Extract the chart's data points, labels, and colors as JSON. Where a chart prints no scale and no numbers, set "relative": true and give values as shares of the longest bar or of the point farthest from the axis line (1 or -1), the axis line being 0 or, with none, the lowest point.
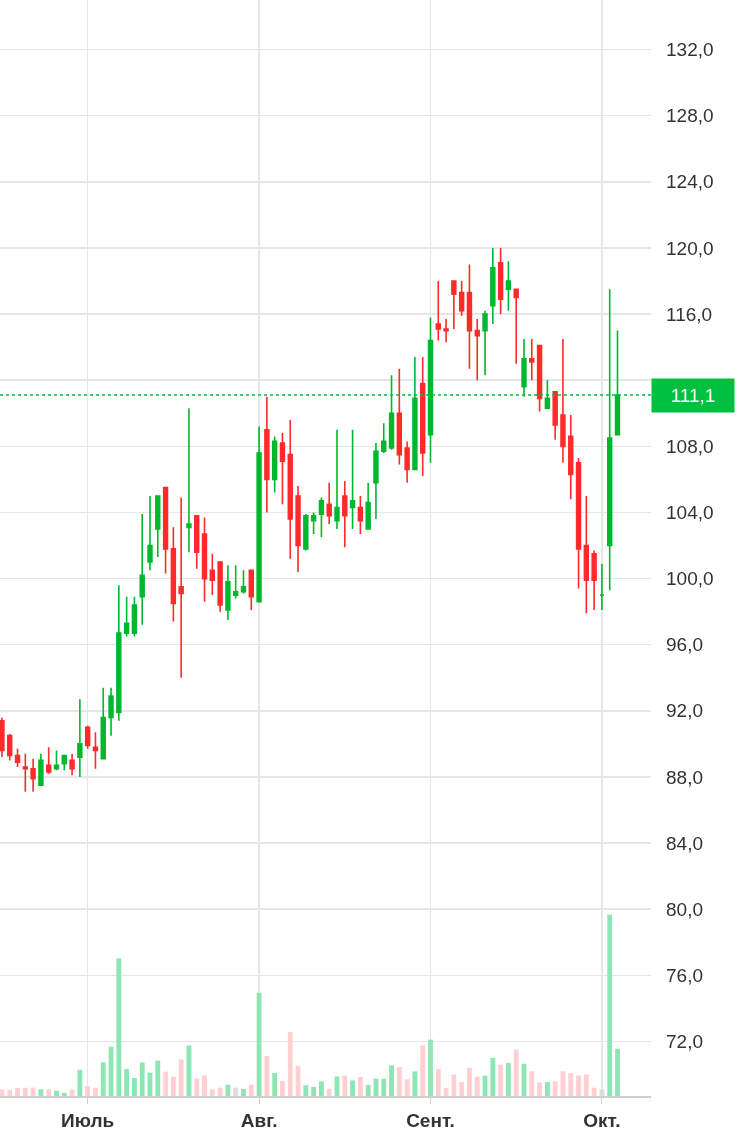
{
  "chart_data": [
    {
      "type": "candlestick",
      "categories": [
        null,
        null,
        null,
        null,
        null,
        null,
        null,
        null,
        null,
        null,
        null,
        "Июль",
        null,
        null,
        null,
        null,
        null,
        null,
        null,
        null,
        null,
        null,
        null,
        null,
        null,
        null,
        null,
        null,
        null,
        null,
        null,
        null,
        null,
        "Авг.",
        null,
        null,
        null,
        null,
        null,
        null,
        null,
        null,
        null,
        null,
        null,
        null,
        null,
        null,
        null,
        null,
        null,
        null,
        null,
        null,
        null,
        "Сент.",
        null,
        null,
        null,
        null,
        null,
        null,
        null,
        null,
        null,
        null,
        null,
        null,
        null,
        null,
        null,
        null,
        null,
        null,
        null,
        null,
        null,
        "Окт.",
        null,
        null
      ],
      "ylim": [
        68.7,
        135
      ],
      "yticks": [
        {
          "value": 72,
          "label": "72,0"
        },
        {
          "value": 76,
          "label": "76,0"
        },
        {
          "value": 80,
          "label": "80,0"
        },
        {
          "value": 84,
          "label": "84,0"
        },
        {
          "value": 88,
          "label": "88,0"
        },
        {
          "value": 92,
          "label": "92,0"
        },
        {
          "value": 96,
          "label": "96,0"
        },
        {
          "value": 100,
          "label": "100,0"
        },
        {
          "value": 104,
          "label": "104,0"
        },
        {
          "value": 108,
          "label": "108,0"
        },
        {
          "value": 112,
          "label": null
        },
        {
          "value": 116,
          "label": "116,0"
        },
        {
          "value": 120,
          "label": "120,0"
        },
        {
          "value": 124,
          "label": "124,0"
        },
        {
          "value": 128,
          "label": "128,0"
        },
        {
          "value": 132,
          "label": "132,0"
        }
      ],
      "grid": true,
      "ref_lines": [
        {
          "axis": "y",
          "value": 111.1,
          "label": "111,1",
          "color": "#00c040",
          "line_style": "dotted"
        }
      ],
      "colors": [
        "#ff2a2a",
        "#ff2a2a",
        "#ff2a2a",
        "#ff2a2a",
        "#ff2a2a",
        "#00b82e",
        "#ff2a2a",
        "#00b82e",
        "#00b82e",
        "#ff2a2a",
        "#00b82e",
        "#ff2a2a",
        "#ff2a2a",
        "#00b82e",
        "#00b82e",
        "#00b82e",
        "#00b82e",
        "#00b82e",
        "#00b82e",
        "#00b82e",
        "#00b82e",
        "#ff2a2a",
        "#ff2a2a",
        "#ff2a2a",
        "#00b82e",
        "#ff2a2a",
        "#ff2a2a",
        "#ff2a2a",
        "#ff2a2a",
        "#00b82e",
        "#00b82e",
        "#00b82e",
        "#ff2a2a",
        "#00b82e",
        "#ff2a2a",
        "#00b82e",
        "#ff2a2a",
        "#ff2a2a",
        "#ff2a2a",
        "#00b82e",
        "#00b82e",
        "#00b82e",
        "#ff2a2a",
        "#00b82e",
        "#ff2a2a",
        "#00b82e",
        "#ff2a2a",
        "#00b82e",
        "#00b82e",
        "#00b82e",
        "#00b82e",
        "#ff2a2a",
        "#ff2a2a",
        "#00b82e",
        "#ff2a2a",
        "#00b82e",
        "#ff2a2a",
        "#ff2a2a",
        "#ff2a2a",
        "#ff2a2a",
        "#ff2a2a",
        "#ff2a2a",
        "#00b82e",
        "#00b82e",
        "#ff2a2a",
        "#00b82e",
        "#ff2a2a",
        "#00b82e",
        "#ff2a2a",
        "#ff2a2a",
        "#00b82e",
        "#ff2a2a",
        "#ff2a2a",
        "#ff2a2a",
        "#ff2a2a",
        "#ff2a2a",
        "#ff2a2a",
        "#00b82e",
        "#00b82e",
        "#00b82e"
      ],
      "ohlc": [
        [
          91.4,
          91.6,
          89.2,
          89.6
        ],
        [
          90.5,
          90.6,
          89.0,
          89.3
        ],
        [
          89.3,
          89.7,
          88.6,
          88.9
        ],
        [
          88.6,
          89.4,
          87.1,
          88.5
        ],
        [
          88.5,
          89.1,
          87.1,
          87.9
        ],
        [
          87.5,
          89.4,
          87.5,
          89.0
        ],
        [
          88.7,
          89.8,
          88.2,
          88.3
        ],
        [
          88.5,
          89.6,
          88.4,
          88.7
        ],
        [
          88.8,
          89.3,
          88.4,
          89.3
        ],
        [
          89.0,
          89.4,
          88.1,
          88.5
        ],
        [
          89.2,
          92.7,
          88.0,
          90.0
        ],
        [
          91.0,
          91.1,
          89.7,
          89.9
        ],
        [
          89.8,
          90.7,
          88.5,
          89.6
        ],
        [
          89.1,
          93.4,
          89.1,
          91.6
        ],
        [
          91.6,
          93.4,
          90.5,
          92.9
        ],
        [
          91.9,
          99.6,
          91.4,
          96.7
        ],
        [
          96.7,
          98.9,
          96.5,
          97.3
        ],
        [
          96.7,
          98.9,
          96.5,
          98.4
        ],
        [
          98.9,
          103.9,
          97.2,
          100.2
        ],
        [
          101.0,
          105.0,
          100.5,
          102.0
        ],
        [
          103.0,
          105.0,
          101.3,
          105.0
        ],
        [
          105.5,
          105.5,
          100.3,
          101.8
        ],
        [
          101.8,
          103.1,
          97.4,
          98.5
        ],
        [
          99.5,
          104.9,
          94.0,
          99.1
        ],
        [
          103.1,
          110.3,
          101.6,
          103.3
        ],
        [
          103.8,
          103.8,
          100.6,
          101.6
        ],
        [
          102.7,
          103.7,
          98.6,
          100.0
        ],
        [
          100.5,
          101.5,
          99.0,
          99.9
        ],
        [
          101.0,
          101.0,
          98.0,
          98.4
        ],
        [
          98.1,
          100.8,
          97.5,
          99.8
        ],
        [
          99.0,
          100.8,
          98.8,
          99.2
        ],
        [
          99.2,
          100.5,
          99.1,
          99.5
        ],
        [
          100.5,
          100.5,
          98.1,
          98.9
        ],
        [
          98.6,
          109.2,
          98.6,
          107.6
        ],
        [
          109.0,
          111.0,
          104.0,
          106.0
        ],
        [
          106.0,
          108.6,
          105.2,
          108.3
        ],
        [
          108.2,
          108.8,
          104.5,
          107.1
        ],
        [
          107.5,
          109.6,
          101.2,
          103.6
        ],
        [
          105.0,
          105.6,
          100.4,
          102.0
        ],
        [
          101.8,
          103.9,
          101.7,
          103.8
        ],
        [
          103.5,
          104.0,
          102.7,
          103.8
        ],
        [
          103.9,
          104.9,
          102.5,
          104.7
        ],
        [
          104.5,
          105.8,
          103.3,
          103.8
        ],
        [
          103.5,
          109.0,
          103.0,
          104.3
        ],
        [
          105.0,
          105.9,
          101.9,
          103.8
        ],
        [
          104.3,
          109.0,
          103.0,
          104.7
        ],
        [
          104.3,
          105.0,
          102.7,
          103.5
        ],
        [
          103.0,
          105.8,
          103.0,
          104.6
        ],
        [
          105.8,
          108.2,
          103.6,
          107.7
        ],
        [
          107.7,
          109.4,
          107.6,
          108.3
        ],
        [
          107.9,
          112.3,
          107.8,
          110.0
        ],
        [
          110.0,
          112.7,
          106.9,
          107.5
        ],
        [
          107.9,
          108.3,
          105.8,
          106.6
        ],
        [
          106.6,
          113.4,
          106.6,
          110.9
        ],
        [
          111.8,
          113.4,
          106.2,
          107.6
        ],
        [
          108.7,
          115.8,
          107.0,
          114.4
        ],
        [
          115.4,
          118.0,
          114.4,
          115.1
        ],
        [
          115.1,
          115.7,
          114.3,
          115.0
        ],
        [
          118.0,
          118.0,
          115.1,
          117.2
        ],
        [
          117.3,
          118.0,
          115.9,
          116.2
        ],
        [
          117.3,
          119.0,
          112.7,
          115.0
        ],
        [
          115.0,
          115.7,
          112.0,
          114.7
        ],
        [
          115.0,
          116.2,
          112.3,
          116.0
        ],
        [
          116.5,
          120.0,
          115.4,
          118.8
        ],
        [
          119.1,
          120.0,
          116.0,
          116.9
        ],
        [
          117.5,
          119.2,
          116.2,
          118.0
        ],
        [
          117.5,
          117.5,
          113.0,
          117.0
        ],
        [
          111.6,
          114.5,
          111.0,
          113.3
        ],
        [
          113.3,
          114.5,
          112.0,
          113.1
        ],
        [
          114.1,
          114.1,
          110.1,
          110.9
        ],
        [
          110.3,
          112.0,
          110.3,
          110.9
        ],
        [
          111.3,
          111.3,
          108.4,
          109.3
        ],
        [
          109.9,
          114.5,
          107.0,
          108.0
        ],
        [
          108.6,
          109.9,
          104.8,
          106.3
        ],
        [
          107.0,
          107.3,
          99.4,
          101.8
        ],
        [
          102.0,
          105.0,
          97.9,
          99.9
        ],
        [
          101.5,
          101.7,
          98.1,
          99.9
        ],
        [
          99.0,
          100.9,
          98.1,
          99.0
        ],
        [
          102.0,
          117.5,
          99.3,
          108.5
        ],
        [
          108.7,
          115.0,
          108.7,
          111.1
        ]
      ]
    },
    {
      "type": "bar",
      "relative": true,
      "categories": [
        null,
        null,
        null,
        null,
        null,
        null,
        null,
        null,
        null,
        null,
        null,
        null,
        null,
        null,
        null,
        null,
        null,
        null,
        null,
        null,
        null,
        null,
        null,
        null,
        null,
        null,
        null,
        null,
        null,
        null,
        null,
        null,
        null,
        null,
        null,
        null,
        null,
        null,
        null,
        null,
        null,
        null,
        null,
        null,
        null,
        null,
        null,
        null,
        null,
        null,
        null,
        null,
        null,
        null,
        null,
        null,
        null,
        null,
        null,
        null,
        null,
        null,
        null,
        null,
        null,
        null,
        null,
        null,
        null,
        null,
        null,
        null,
        null,
        null,
        null,
        null,
        null,
        null,
        null,
        null
      ],
      "colors": [
        "#ffcfd2",
        "#ffcfd2",
        "#ffcfd2",
        "#ffcfd2",
        "#ffcfd2",
        "#8ee6b4",
        "#ffcfd2",
        "#8ee6b4",
        "#8ee6b4",
        "#ffcfd2",
        "#8ee6b4",
        "#ffcfd2",
        "#ffcfd2",
        "#8ee6b4",
        "#8ee6b4",
        "#8ee6b4",
        "#8ee6b4",
        "#8ee6b4",
        "#8ee6b4",
        "#8ee6b4",
        "#8ee6b4",
        "#ffcfd2",
        "#ffcfd2",
        "#ffcfd2",
        "#8ee6b4",
        "#ffcfd2",
        "#ffcfd2",
        "#ffcfd2",
        "#ffcfd2",
        "#8ee6b4",
        "#dcdcdc",
        "#8ee6b4",
        "#ffcfd2",
        "#8ee6b4",
        "#ffcfd2",
        "#8ee6b4",
        "#ffcfd2",
        "#ffcfd2",
        "#ffcfd2",
        "#8ee6b4",
        "#8ee6b4",
        "#8ee6b4",
        "#ffcfd2",
        "#8ee6b4",
        "#ffcfd2",
        "#8ee6b4",
        "#ffcfd2",
        "#8ee6b4",
        "#8ee6b4",
        "#8ee6b4",
        "#8ee6b4",
        "#ffcfd2",
        "#ffcfd2",
        "#8ee6b4",
        "#ffcfd2",
        "#8ee6b4",
        "#ffcfd2",
        "#ffcfd2",
        "#ffcfd2",
        "#ffcfd2",
        "#ffcfd2",
        "#ffcfd2",
        "#8ee6b4",
        "#8ee6b4",
        "#ffcfd2",
        "#8ee6b4",
        "#ffcfd2",
        "#8ee6b4",
        "#ffcfd2",
        "#ffcfd2",
        "#8ee6b4",
        "#ffcfd2",
        "#ffcfd2",
        "#ffcfd2",
        "#ffcfd2",
        "#ffcfd2",
        "#ffcfd2",
        "#dcdcdc",
        "#8ee6b4",
        "#8ee6b4"
      ],
      "values": [
        0.037,
        0.035,
        0.044,
        0.046,
        0.046,
        0.037,
        0.037,
        0.029,
        0.017,
        0.035,
        0.145,
        0.055,
        0.046,
        0.186,
        0.272,
        0.761,
        0.149,
        0.099,
        0.186,
        0.129,
        0.195,
        0.134,
        0.107,
        0.202,
        0.279,
        0.096,
        0.114,
        0.037,
        0.046,
        0.063,
        0.046,
        0.039,
        0.063,
        0.57,
        0.221,
        0.127,
        0.083,
        0.353,
        0.167,
        0.059,
        0.05,
        0.081,
        0.04,
        0.108,
        0.112,
        0.086,
        0.105,
        0.061,
        0.096,
        0.096,
        0.169,
        0.16,
        0.092,
        0.136,
        0.279,
        0.311,
        0.149,
        0.044,
        0.119,
        0.077,
        0.156,
        0.107,
        0.112,
        0.211,
        0.173,
        0.182,
        0.256,
        0.178,
        0.136,
        0.075,
        0.077,
        0.081,
        0.136,
        0.127,
        0.114,
        0.119,
        0.046,
        0.037,
        1.0,
        0.261
      ]
    }
  ]
}
